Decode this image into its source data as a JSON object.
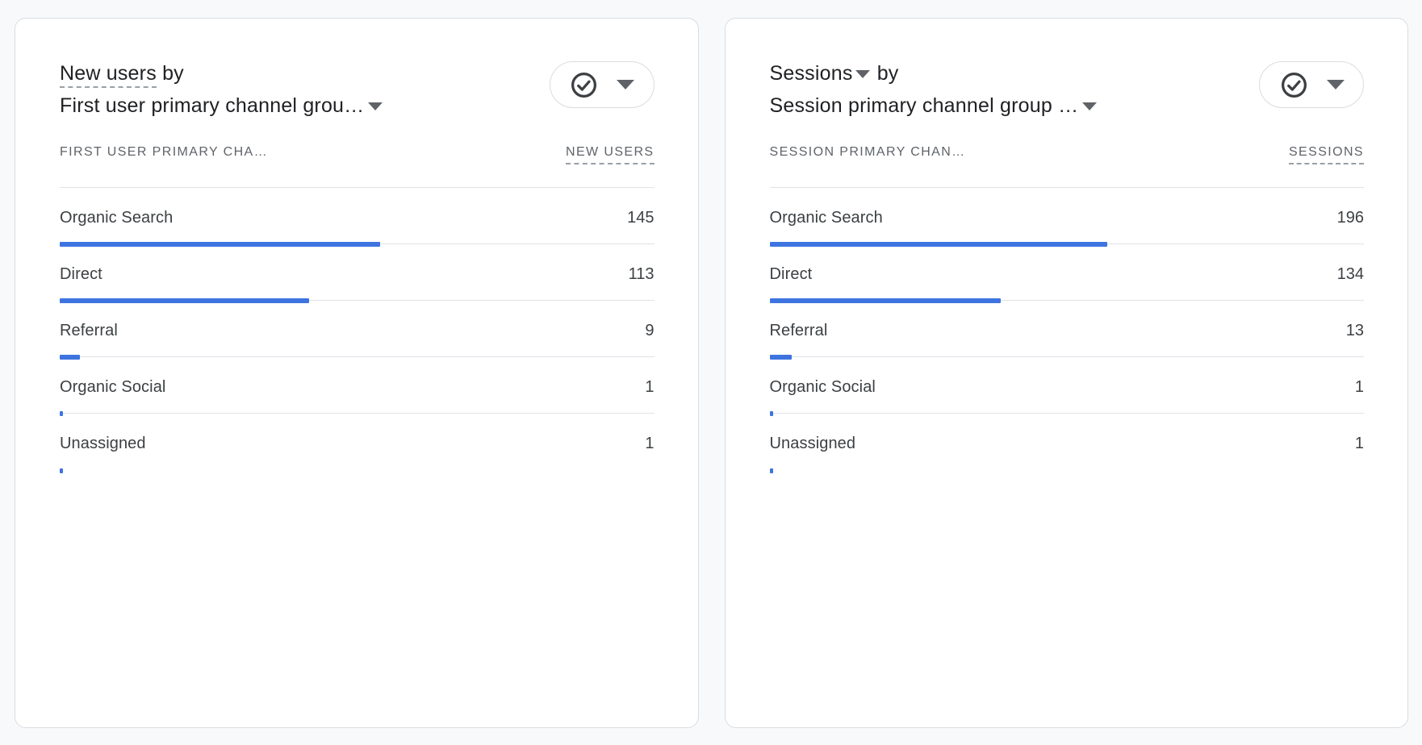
{
  "page": {
    "background": "#f8f9fa"
  },
  "colors": {
    "bar_blue": "#3d74e0",
    "card_border": "#dadce0",
    "divider": "#e0e2e6",
    "muted_text": "#5f6368",
    "dark_text": "#3c4043"
  },
  "icons": {
    "options": "check-circle-icon",
    "dropdown": "chevron-down-icon"
  },
  "cards": [
    {
      "metric_label": "New users",
      "by_label": "by",
      "dimension_label": "First user primary channel grou…",
      "dim_header": "FIRST USER PRIMARY CHA…",
      "metric_header": "NEW USERS",
      "rows": [
        {
          "label": "Organic Search",
          "value": 145
        },
        {
          "label": "Direct",
          "value": 113
        },
        {
          "label": "Referral",
          "value": 9
        },
        {
          "label": "Organic Social",
          "value": 1
        },
        {
          "label": "Unassigned",
          "value": 1
        }
      ]
    },
    {
      "metric_label": "Sessions",
      "by_label": "by",
      "dimension_label": "Session primary channel group …",
      "dim_header": "SESSION PRIMARY CHAN…",
      "metric_header": "SESSIONS",
      "rows": [
        {
          "label": "Organic Search",
          "value": 196
        },
        {
          "label": "Direct",
          "value": 134
        },
        {
          "label": "Referral",
          "value": 13
        },
        {
          "label": "Organic Social",
          "value": 1
        },
        {
          "label": "Unassigned",
          "value": 1
        }
      ]
    }
  ],
  "chart_data": [
    {
      "type": "bar",
      "title": "New users by First user primary channel grou…",
      "categories": [
        "Organic Search",
        "Direct",
        "Referral",
        "Organic Social",
        "Unassigned"
      ],
      "values": [
        145,
        113,
        9,
        1,
        1
      ],
      "xlabel": "FIRST USER PRIMARY CHA…",
      "ylabel": "NEW USERS",
      "orientation": "horizontal",
      "bar_scale": "proportion of total"
    },
    {
      "type": "bar",
      "title": "Sessions by Session primary channel group …",
      "categories": [
        "Organic Search",
        "Direct",
        "Referral",
        "Organic Social",
        "Unassigned"
      ],
      "values": [
        196,
        134,
        13,
        1,
        1
      ],
      "xlabel": "SESSION PRIMARY CHAN…",
      "ylabel": "SESSIONS",
      "orientation": "horizontal",
      "bar_scale": "proportion of total"
    }
  ]
}
